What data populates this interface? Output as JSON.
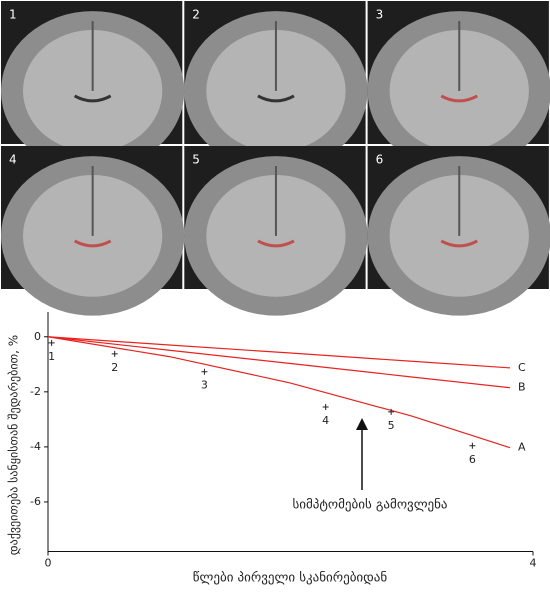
{
  "panels": [
    "1",
    "2",
    "3",
    "4",
    "5",
    "6"
  ],
  "chart_data": {
    "type": "line",
    "x_label": "წლები პირველი სკანირებიდან",
    "y_label": "დაქვეითება სანყისთან შედარებით, %",
    "annotation": "სიმპტომების გამოვლენა",
    "xlim": [
      0,
      4
    ],
    "ylim": [
      -7.8,
      0.9
    ],
    "xticks": [
      0,
      4
    ],
    "yticks": [
      0,
      -2,
      -4,
      -6
    ],
    "series": [
      {
        "name": "A",
        "color": "#e8231f",
        "x": [
          0,
          1,
          2,
          3,
          3.81
        ],
        "values": [
          0,
          -0.72,
          -1.68,
          -2.88,
          -4.03
        ]
      },
      {
        "name": "B",
        "color": "#e8231f",
        "x": [
          0,
          1,
          2,
          3,
          3.81
        ],
        "values": [
          0,
          -0.49,
          -0.97,
          -1.46,
          -1.85
        ]
      },
      {
        "name": "C",
        "color": "#e8231f",
        "x": [
          0,
          1,
          2,
          3,
          3.81
        ],
        "values": [
          0,
          -0.3,
          -0.59,
          -0.89,
          -1.13
        ]
      }
    ],
    "scatter": {
      "labels": [
        "1",
        "2",
        "3",
        "4",
        "5",
        "6"
      ],
      "x": [
        0.03,
        0.55,
        1.29,
        2.29,
        2.83,
        3.5
      ],
      "values": [
        -0.22,
        -0.62,
        -1.27,
        -2.55,
        -2.73,
        -3.96
      ]
    }
  }
}
